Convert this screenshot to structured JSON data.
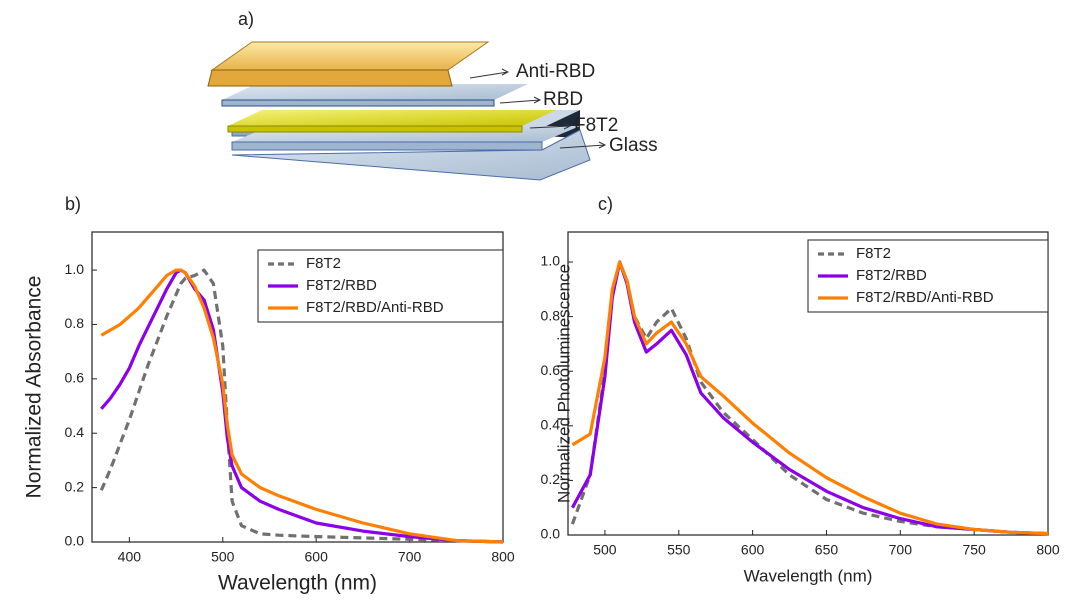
{
  "diagram": {
    "label": "a)",
    "layers": [
      "Anti-RBD",
      "RBD",
      "F8T2",
      "Glass"
    ]
  },
  "chart_data": [
    {
      "type": "line",
      "panel_label": "b)",
      "x_label": "Wavelength (nm)",
      "y_label": "Normalized Absorbance",
      "x": [
        370,
        380,
        390,
        400,
        410,
        420,
        430,
        440,
        450,
        455,
        460,
        470,
        480,
        490,
        500,
        505,
        510,
        520,
        540,
        560,
        600,
        650,
        700,
        750,
        800
      ],
      "series": [
        {
          "name": "F8T2",
          "color": "#707070",
          "line_style": "dashed",
          "values": [
            0.19,
            0.27,
            0.36,
            0.45,
            0.55,
            0.65,
            0.74,
            0.83,
            0.91,
            0.95,
            0.97,
            0.98,
            1.0,
            0.95,
            0.72,
            0.42,
            0.15,
            0.06,
            0.03,
            0.025,
            0.02,
            0.015,
            0.01,
            0.005,
            0
          ]
        },
        {
          "name": "F8T2/RBD",
          "color": "#8b00e8",
          "line_style": "solid",
          "values": [
            0.49,
            0.53,
            0.58,
            0.64,
            0.72,
            0.79,
            0.86,
            0.93,
            0.99,
            1.0,
            0.99,
            0.93,
            0.89,
            0.78,
            0.55,
            0.38,
            0.28,
            0.2,
            0.15,
            0.12,
            0.07,
            0.04,
            0.02,
            0.005,
            0
          ]
        },
        {
          "name": "F8T2/RBD/Anti-RBD",
          "color": "#ff8000",
          "line_style": "solid",
          "values": [
            0.76,
            0.78,
            0.8,
            0.83,
            0.86,
            0.9,
            0.94,
            0.98,
            1.0,
            1.0,
            0.99,
            0.94,
            0.86,
            0.75,
            0.58,
            0.43,
            0.32,
            0.25,
            0.2,
            0.17,
            0.12,
            0.07,
            0.03,
            0.005,
            0
          ]
        }
      ],
      "xlim": [
        360,
        800
      ],
      "xticks": [
        400,
        500,
        600,
        700,
        800
      ],
      "ylim": [
        0,
        1.14
      ],
      "yticks": [
        {
          "value": 0,
          "label": "0.0"
        },
        0.2,
        0.4,
        0.6,
        0.8,
        {
          "value": 1,
          "label": "1.0"
        }
      ],
      "legend": "upper right"
    },
    {
      "type": "line",
      "panel_label": "c)",
      "x_label": "Wavelength (nm)",
      "y_label": "Normalized Photoluminescence",
      "x": [
        478,
        490,
        500,
        505,
        510,
        515,
        520,
        528,
        535,
        545,
        555,
        565,
        580,
        600,
        625,
        650,
        675,
        700,
        725,
        750,
        775,
        800
      ],
      "series": [
        {
          "name": "F8T2",
          "color": "#707070",
          "line_style": "dashed",
          "values": [
            0.04,
            0.22,
            0.6,
            0.88,
            1.0,
            0.93,
            0.8,
            0.72,
            0.78,
            0.83,
            0.72,
            0.56,
            0.45,
            0.35,
            0.22,
            0.13,
            0.08,
            0.05,
            0.03,
            0.02,
            0.01,
            0.005
          ]
        },
        {
          "name": "F8T2/RBD",
          "color": "#8b00e8",
          "line_style": "solid",
          "values": [
            0.1,
            0.22,
            0.58,
            0.87,
            1.0,
            0.92,
            0.78,
            0.67,
            0.7,
            0.75,
            0.66,
            0.52,
            0.43,
            0.34,
            0.24,
            0.16,
            0.1,
            0.06,
            0.03,
            0.02,
            0.01,
            0.005
          ]
        },
        {
          "name": "F8T2/RBD/Anti-RBD",
          "color": "#ff8000",
          "line_style": "solid",
          "values": [
            0.33,
            0.37,
            0.65,
            0.9,
            1.0,
            0.93,
            0.8,
            0.7,
            0.74,
            0.78,
            0.7,
            0.58,
            0.51,
            0.41,
            0.3,
            0.21,
            0.14,
            0.08,
            0.04,
            0.02,
            0.01,
            0.005
          ]
        }
      ],
      "xlim": [
        475,
        800
      ],
      "xticks": [
        500,
        550,
        600,
        650,
        700,
        750,
        800
      ],
      "ylim": [
        0,
        1.11
      ],
      "yticks": [
        {
          "value": 0,
          "label": "0.0"
        },
        0.2,
        0.4,
        0.6,
        0.8,
        {
          "value": 1,
          "label": "1.0"
        }
      ],
      "legend": "upper right"
    }
  ]
}
